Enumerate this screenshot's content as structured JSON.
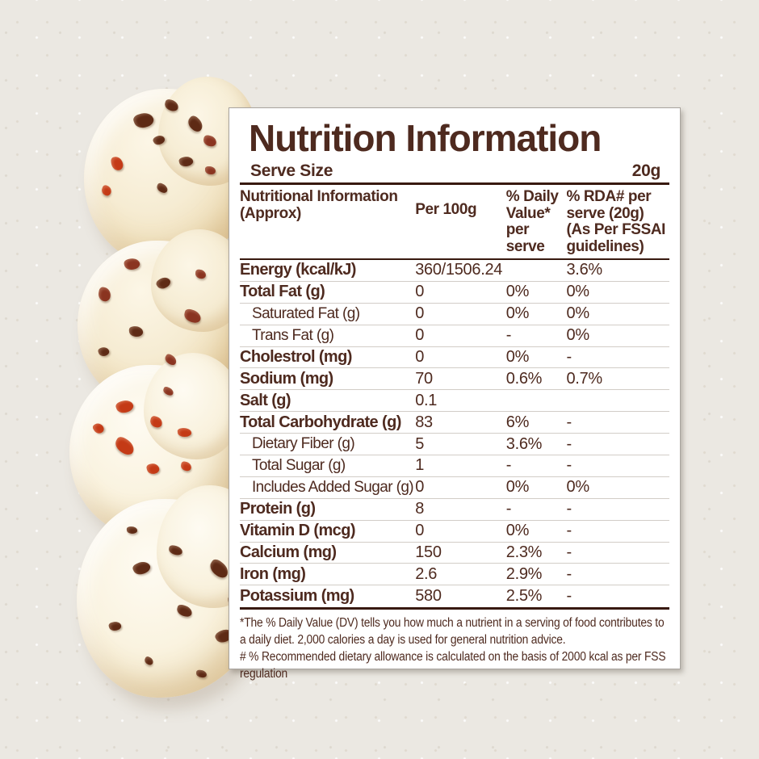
{
  "colors": {
    "label_text": "#4e2a1f",
    "page_bg": "#ebe8e2",
    "panel_bg": "#ffffff",
    "panel_border": "#a9a49e",
    "divider_light": "#d2cdc7",
    "divider_dark": "#38190f",
    "bun_cream": "#f5ead0",
    "chip_brown": "#5e2a15",
    "chip_maroon": "#8a3420",
    "chip_red": "#c43a16"
  },
  "label": {
    "title": "Nutrition Information",
    "serve_size": {
      "label": "Serve Size",
      "value": "20g"
    },
    "table": {
      "col_headers": [
        "Nutritional Information (Approx)",
        "Per 100g",
        "% Daily Value* per serve",
        "% RDA# per serve (20g) (As Per FSSAI guidelines)"
      ],
      "rows": [
        {
          "name": "Energy (kcal/kJ)",
          "per_100g": "360/1506.24",
          "daily_value": "",
          "rda": "3.6%",
          "style": "bold"
        },
        {
          "name": "Total Fat (g)",
          "per_100g": "0",
          "daily_value": "0%",
          "rda": "0%",
          "style": "bold"
        },
        {
          "name": "Saturated Fat (g)",
          "per_100g": "0",
          "daily_value": "0%",
          "rda": "0%",
          "style": "indent"
        },
        {
          "name": "Trans Fat (g)",
          "per_100g": "0",
          "daily_value": "-",
          "rda": "0%",
          "style": "indent"
        },
        {
          "name": "Cholestrol (mg)",
          "per_100g": "0",
          "daily_value": "0%",
          "rda": "-",
          "style": "bold"
        },
        {
          "name": "Sodium (mg)",
          "per_100g": "70",
          "daily_value": "0.6%",
          "rda": "0.7%",
          "style": "bold"
        },
        {
          "name": "Salt (g)",
          "per_100g": "0.1",
          "daily_value": "",
          "rda": "",
          "style": "bold"
        },
        {
          "name": "Total Carbohydrate (g)",
          "per_100g": "83",
          "daily_value": "6%",
          "rda": "-",
          "style": "bold"
        },
        {
          "name": "Dietary Fiber (g)",
          "per_100g": "5",
          "daily_value": "3.6%",
          "rda": "-",
          "style": "indent"
        },
        {
          "name": "Total Sugar (g)",
          "per_100g": "1",
          "daily_value": "-",
          "rda": "-",
          "style": "indent"
        },
        {
          "name": "Includes Added Sugar (g)",
          "per_100g": "0",
          "daily_value": "0%",
          "rda": "0%",
          "style": "indent"
        },
        {
          "name": "Protein (g)",
          "per_100g": "8",
          "daily_value": "-",
          "rda": "-",
          "style": "bold"
        },
        {
          "name": "Vitamin D (mcg)",
          "per_100g": "0",
          "daily_value": "0%",
          "rda": "-",
          "style": "bold"
        },
        {
          "name": "Calcium (mg)",
          "per_100g": "150",
          "daily_value": "2.3%",
          "rda": "-",
          "style": "bold"
        },
        {
          "name": "Iron (mg)",
          "per_100g": "2.6",
          "daily_value": "2.9%",
          "rda": "-",
          "style": "bold"
        },
        {
          "name": "Potassium (mg)",
          "per_100g": "580",
          "daily_value": "2.5%",
          "rda": "-",
          "style": "bold"
        }
      ]
    },
    "footnotes": [
      "*The % Daily Value (DV) tells you how much a nutrient in a serving of food contributes to a daily diet. 2,000 calories a day is used for general nutrition advice.",
      "# % Recommended dietary allowance  is calculated on the basis of 2000 kcal as per FSS regulation"
    ]
  }
}
